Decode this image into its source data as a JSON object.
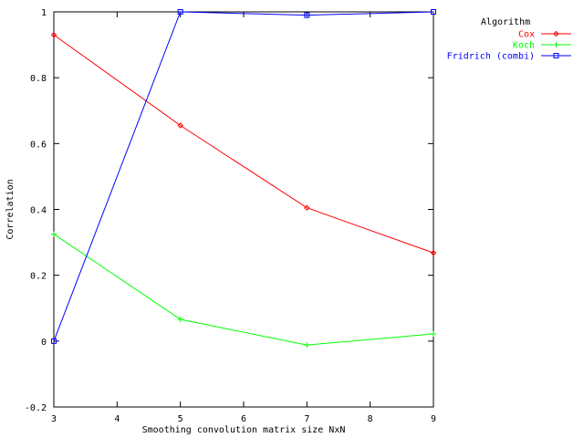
{
  "chart_data": {
    "type": "line",
    "xlabel": "Smoothing convolution matrix size NxN",
    "ylabel": "Correlation",
    "xlim": [
      3,
      9
    ],
    "ylim": [
      -0.2,
      1
    ],
    "xticks": [
      "3",
      "4",
      "5",
      "6",
      "7",
      "8",
      "9"
    ],
    "yticks": [
      "-0.2",
      "0",
      "0.2",
      "0.4",
      "0.6",
      "0.8",
      "1"
    ],
    "legend": {
      "title": "Algorithm",
      "placement": "top-right outside"
    },
    "series": [
      {
        "name": "Cox",
        "color": "#ff0000",
        "marker": "diamond",
        "x": [
          3,
          5,
          7,
          9
        ],
        "y": [
          0.93,
          0.655,
          0.405,
          0.268
        ]
      },
      {
        "name": "Koch",
        "color": "#00ff00",
        "marker": "plus",
        "x": [
          3,
          5,
          7,
          9
        ],
        "y": [
          0.325,
          0.066,
          -0.012,
          0.022
        ]
      },
      {
        "name": "Fridrich (combi)",
        "color": "#0000ff",
        "marker": "square",
        "x": [
          3,
          5,
          7,
          9
        ],
        "y": [
          0.0,
          1.0,
          0.99,
          1.0
        ]
      }
    ]
  }
}
